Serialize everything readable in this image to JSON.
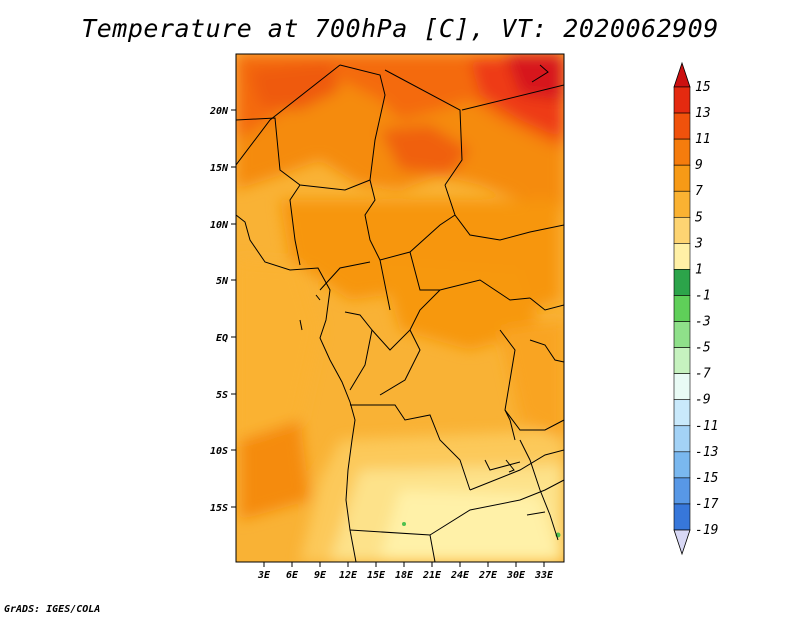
{
  "title": "Temperature at 700hPa [C], VT: 2020062909",
  "credit": "GrADS: IGES/COLA",
  "map": {
    "lat_ticks": [
      "20N",
      "15N",
      "10N",
      "5N",
      "EQ",
      "5S",
      "10S",
      "15S"
    ],
    "lon_ticks": [
      "3E",
      "6E",
      "9E",
      "12E",
      "15E",
      "18E",
      "21E",
      "24E",
      "27E",
      "30E",
      "33E"
    ]
  },
  "colorbar": {
    "labels": [
      "15",
      "13",
      "11",
      "9",
      "7",
      "5",
      "3",
      "1",
      "-1",
      "-3",
      "-5",
      "-7",
      "-9",
      "-11",
      "-13",
      "-15",
      "-17",
      "-19"
    ],
    "colors": [
      "#d7191c",
      "#ee3a12",
      "#f4680f",
      "#f58b0e",
      "#f8a622",
      "#fbc14e",
      "#fde28a",
      "#fff6b3",
      "#2db34a",
      "#5bd15b",
      "#96e88c",
      "#c8f5c0",
      "#e6f7ff",
      "#c4e6fa",
      "#9bcff5",
      "#74b5ef",
      "#4f97e8",
      "#2f78dc",
      "#1b5cc9",
      "#0f42a8",
      "#0a2b86",
      "#0a1660"
    ],
    "bin_colors": [
      "#e42a10",
      "#f0520c",
      "#f57c0d",
      "#f79a16",
      "#fab232",
      "#fdd472",
      "#fff0a6",
      "#2ca44a",
      "#5fcf59",
      "#8fe08a",
      "#c6f2bf",
      "#e9fbf5",
      "#c9e9fb",
      "#a3d2f6",
      "#7ab8ef",
      "#5898e6",
      "#3777da",
      "#1f5bc6",
      "#1443a6",
      "#0c2a86",
      "#0a1465"
    ],
    "top_arrow_color": "#cc1010",
    "bottom_arrow_color": "#d8d8f5"
  }
}
